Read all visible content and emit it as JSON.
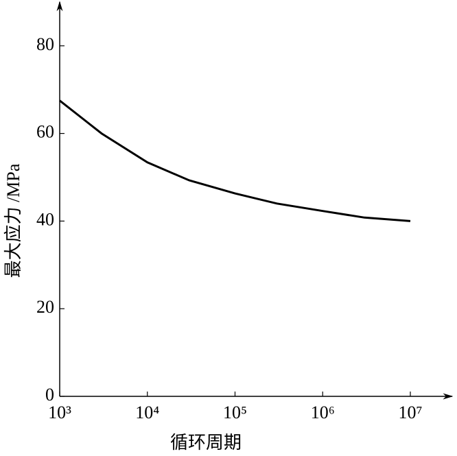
{
  "chart_data": {
    "type": "line",
    "ylabel": "最大应力 /MPa",
    "xlabel": "循环周期",
    "x": [
      1000,
      3000,
      10000,
      30000,
      100000,
      300000,
      1000000,
      3000000,
      10000000
    ],
    "values": [
      67.5,
      60,
      53.4,
      49.3,
      46.3,
      44,
      42.3,
      40.8,
      40
    ],
    "color": "#000000",
    "xscale": "log",
    "xlim": [
      1000,
      30000000
    ],
    "xticks": [
      {
        "value": 1000,
        "label": "10³"
      },
      {
        "value": 10000,
        "label": "10⁴"
      },
      {
        "value": 100000,
        "label": "10⁵"
      },
      {
        "value": 1000000,
        "label": "10⁶"
      },
      {
        "value": 10000000,
        "label": "10⁷"
      }
    ],
    "ylim": [
      0,
      90
    ],
    "yticks": [
      0,
      20,
      40,
      60,
      80
    ]
  }
}
